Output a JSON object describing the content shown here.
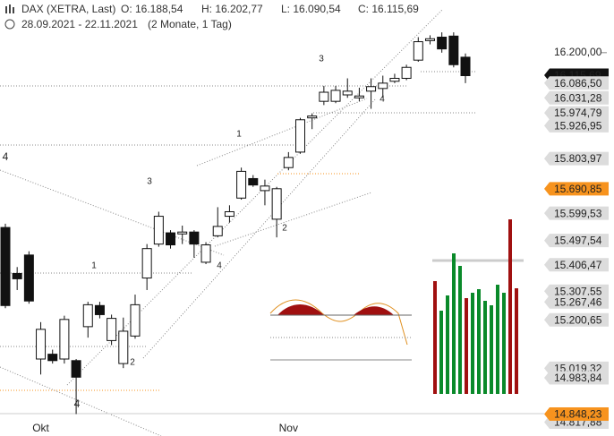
{
  "header": {
    "instrument": "DAX (XETRA, Last)",
    "open": "O: 16.188,54",
    "high": "H: 16.202,77",
    "low": "L: 16.090,54",
    "close": "C: 16.115,69",
    "range": "28.09.2021 - 22.11.2021",
    "span": "(2 Monate, 1 Tag)"
  },
  "chart_data": {
    "type": "candlestick",
    "categories": [
      null,
      null,
      null,
      "Okt",
      null,
      null,
      null,
      null,
      null,
      null,
      null,
      null,
      null,
      null,
      null,
      null,
      null,
      null,
      null,
      null,
      null,
      null,
      null,
      null,
      "Nov",
      null,
      null,
      null,
      null,
      null,
      null,
      null,
      null,
      null,
      null,
      null,
      null,
      null,
      null,
      null
    ],
    "open": [
      15546,
      15374,
      15443,
      15054,
      15072,
      15054,
      15048,
      15175,
      15254,
      15123,
      15037,
      15140,
      15357,
      15484,
      15526,
      15522,
      15529,
      15416,
      15515,
      15588,
      15656,
      15729,
      15684,
      15577,
      15770,
      15828,
      15956,
      16018,
      16018,
      16042,
      16031,
      16056,
      16066,
      16093,
      16104,
      16172,
      16245,
      16258,
      16262,
      16183
    ],
    "high": [
      15560,
      15398,
      15457,
      15192,
      15089,
      15216,
      15054,
      15268,
      15268,
      15220,
      15209,
      15295,
      15484,
      15605,
      15536,
      15553,
      15536,
      15491,
      15622,
      15629,
      15770,
      15742,
      15725,
      15698,
      15828,
      15956,
      15973,
      16076,
      16076,
      16104,
      16069,
      16104,
      16114,
      16121,
      16155,
      16258,
      16265,
      16276,
      16276,
      16197
    ],
    "low": [
      15244,
      15312,
      15261,
      14996,
      15037,
      15037,
      14848,
      15134,
      15206,
      15106,
      15020,
      15130,
      15312,
      15474,
      15467,
      15484,
      15433,
      15409,
      15509,
      15564,
      15650,
      15698,
      15629,
      15509,
      15760,
      15822,
      15914,
      16004,
      16011,
      16031,
      16018,
      15990,
      16031,
      16086,
      16097,
      16166,
      16231,
      16200,
      16145,
      16086
    ],
    "close": [
      15254,
      15354,
      15271,
      15165,
      15048,
      15202,
      14986,
      15257,
      15220,
      15206,
      15158,
      15257,
      15467,
      15588,
      15481,
      15529,
      15484,
      15481,
      15550,
      15605,
      15756,
      15705,
      15701,
      15691,
      15808,
      15949,
      15963,
      16052,
      16059,
      16056,
      16038,
      16073,
      16086,
      16104,
      16145,
      16241,
      16252,
      16214,
      16155,
      16114
    ],
    "up_color": "#ffffff",
    "down_color": "#111111",
    "ylim": [
      14766,
      16397
    ],
    "yticks": [
      {
        "value": 16200,
        "label": "16.200,00"
      }
    ],
    "price_labels": [
      {
        "value": 16115.69,
        "label": "16.115,69",
        "style": "current"
      },
      {
        "value": 16086.5,
        "label": "16.086,50",
        "style": "grey"
      },
      {
        "value": 16031.28,
        "label": "16.031,28",
        "style": "grey"
      },
      {
        "value": 15974.79,
        "label": "15.974,79",
        "style": "grey"
      },
      {
        "value": 15926.95,
        "label": "15.926,95",
        "style": "grey"
      },
      {
        "value": 15803.97,
        "label": "15.803,97",
        "style": "grey"
      },
      {
        "value": 15690.85,
        "label": "15.690,85",
        "style": "orange"
      },
      {
        "value": 15599.53,
        "label": "15.599,53",
        "style": "grey"
      },
      {
        "value": 15497.54,
        "label": "15.497,54",
        "style": "grey"
      },
      {
        "value": 15406.47,
        "label": "15.406,47",
        "style": "grey"
      },
      {
        "value": 15307.55,
        "label": "15.307,55",
        "style": "grey"
      },
      {
        "value": 15267.46,
        "label": "15.267,46",
        "style": "grey"
      },
      {
        "value": 15200.65,
        "label": "15.200,65",
        "style": "grey"
      },
      {
        "value": 15019.32,
        "label": "15.019,32",
        "style": "grey"
      },
      {
        "value": 14983.84,
        "label": "14.983,84",
        "style": "grey"
      },
      {
        "value": 14817.88,
        "label": "14.817,88",
        "style": "grey"
      },
      {
        "value": 14848.23,
        "label": "14.848,23",
        "style": "orange"
      }
    ],
    "annotations": [
      {
        "text": "4",
        "color": "#3333cc"
      },
      {
        "text": "4",
        "color": "#e0307a"
      },
      {
        "text": "1"
      },
      {
        "text": "2"
      },
      {
        "text": "3"
      },
      {
        "text": "4"
      },
      {
        "text": "1"
      },
      {
        "text": "2"
      },
      {
        "text": "3"
      },
      {
        "text": "4"
      }
    ]
  }
}
